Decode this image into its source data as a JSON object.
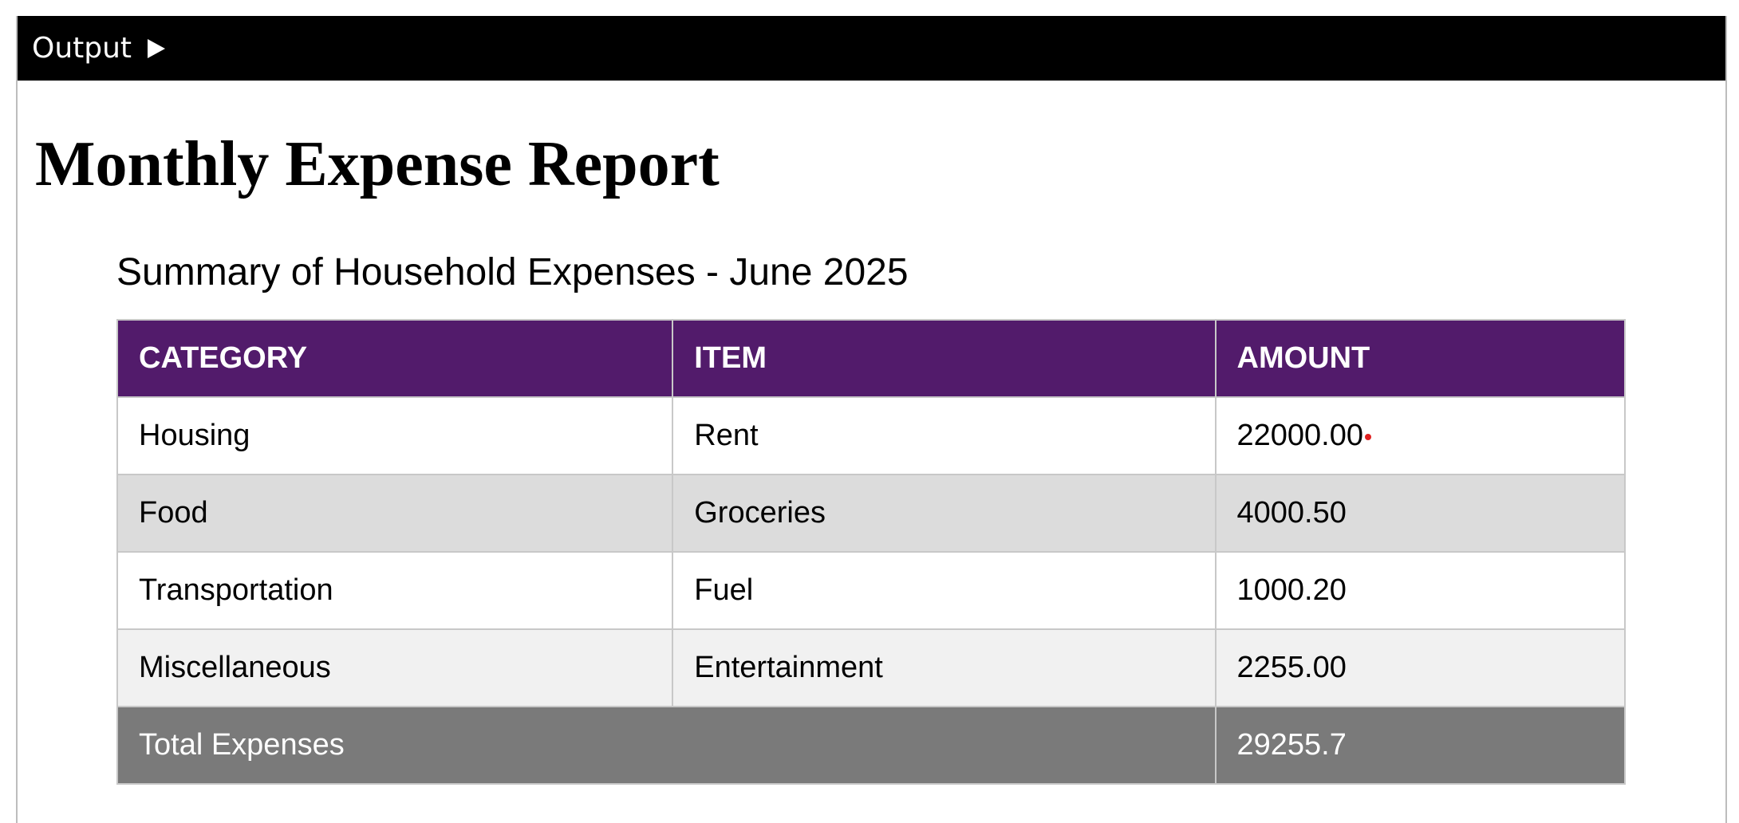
{
  "output_bar": {
    "label": "Output",
    "icon": "play-icon"
  },
  "report": {
    "title": "Monthly Expense Report",
    "subtitle": "Summary of Household Expenses - June 2025"
  },
  "table": {
    "headers": {
      "category": "CATEGORY",
      "item": "ITEM",
      "amount": "AMOUNT"
    },
    "rows": [
      {
        "category": "Housing",
        "item": "Rent",
        "amount": "22000.00"
      },
      {
        "category": "Food",
        "item": "Groceries",
        "amount": "4000.50"
      },
      {
        "category": "Transportation",
        "item": "Fuel",
        "amount": "1000.20"
      },
      {
        "category": "Miscellaneous",
        "item": "Entertainment",
        "amount": "2255.00"
      }
    ],
    "total_label": "Total Expenses",
    "total_value": "29255.7"
  },
  "colors": {
    "header_bg": "#521b6b",
    "total_bg": "#7a7a7a",
    "marker": "#e02020"
  }
}
